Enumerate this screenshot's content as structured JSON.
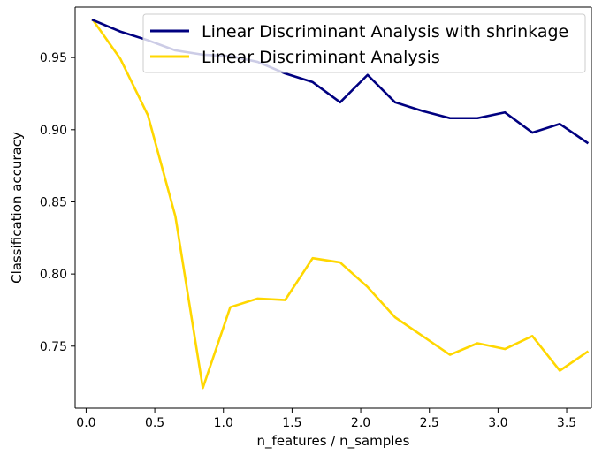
{
  "chart_data": {
    "type": "line",
    "xlabel": "n_features / n_samples",
    "ylabel": "Classification accuracy",
    "xlim": [
      -0.08,
      3.68
    ],
    "ylim": [
      0.707,
      0.985
    ],
    "xticks": [
      0.0,
      0.5,
      1.0,
      1.5,
      2.0,
      2.5,
      3.0,
      3.5
    ],
    "xtick_labels": [
      "0.0",
      "0.5",
      "1.0",
      "1.5",
      "2.0",
      "2.5",
      "3.0",
      "3.5"
    ],
    "yticks": [
      0.75,
      0.8,
      0.85,
      0.9,
      0.95
    ],
    "ytick_labels": [
      "0.75",
      "0.80",
      "0.85",
      "0.90",
      "0.95"
    ],
    "grid": false,
    "legend_position": "top-right",
    "x": [
      0.05,
      0.25,
      0.45,
      0.65,
      0.85,
      1.05,
      1.25,
      1.45,
      1.65,
      1.85,
      2.05,
      2.25,
      2.45,
      2.65,
      2.85,
      3.05,
      3.25,
      3.45,
      3.65
    ],
    "series": [
      {
        "name": "Linear Discriminant Analysis with shrinkage",
        "color": "#000080",
        "values": [
          0.976,
          0.968,
          0.962,
          0.955,
          0.952,
          0.951,
          0.947,
          0.939,
          0.933,
          0.919,
          0.938,
          0.919,
          0.913,
          0.908,
          0.908,
          0.912,
          0.898,
          0.904,
          0.891
        ]
      },
      {
        "name": "Linear Discriminant Analysis",
        "color": "#FFD700",
        "values": [
          0.976,
          0.949,
          0.91,
          0.84,
          0.721,
          0.777,
          0.783,
          0.782,
          0.811,
          0.808,
          0.791,
          0.77,
          0.757,
          0.744,
          0.752,
          0.748,
          0.757,
          0.733,
          0.746
        ]
      }
    ]
  }
}
